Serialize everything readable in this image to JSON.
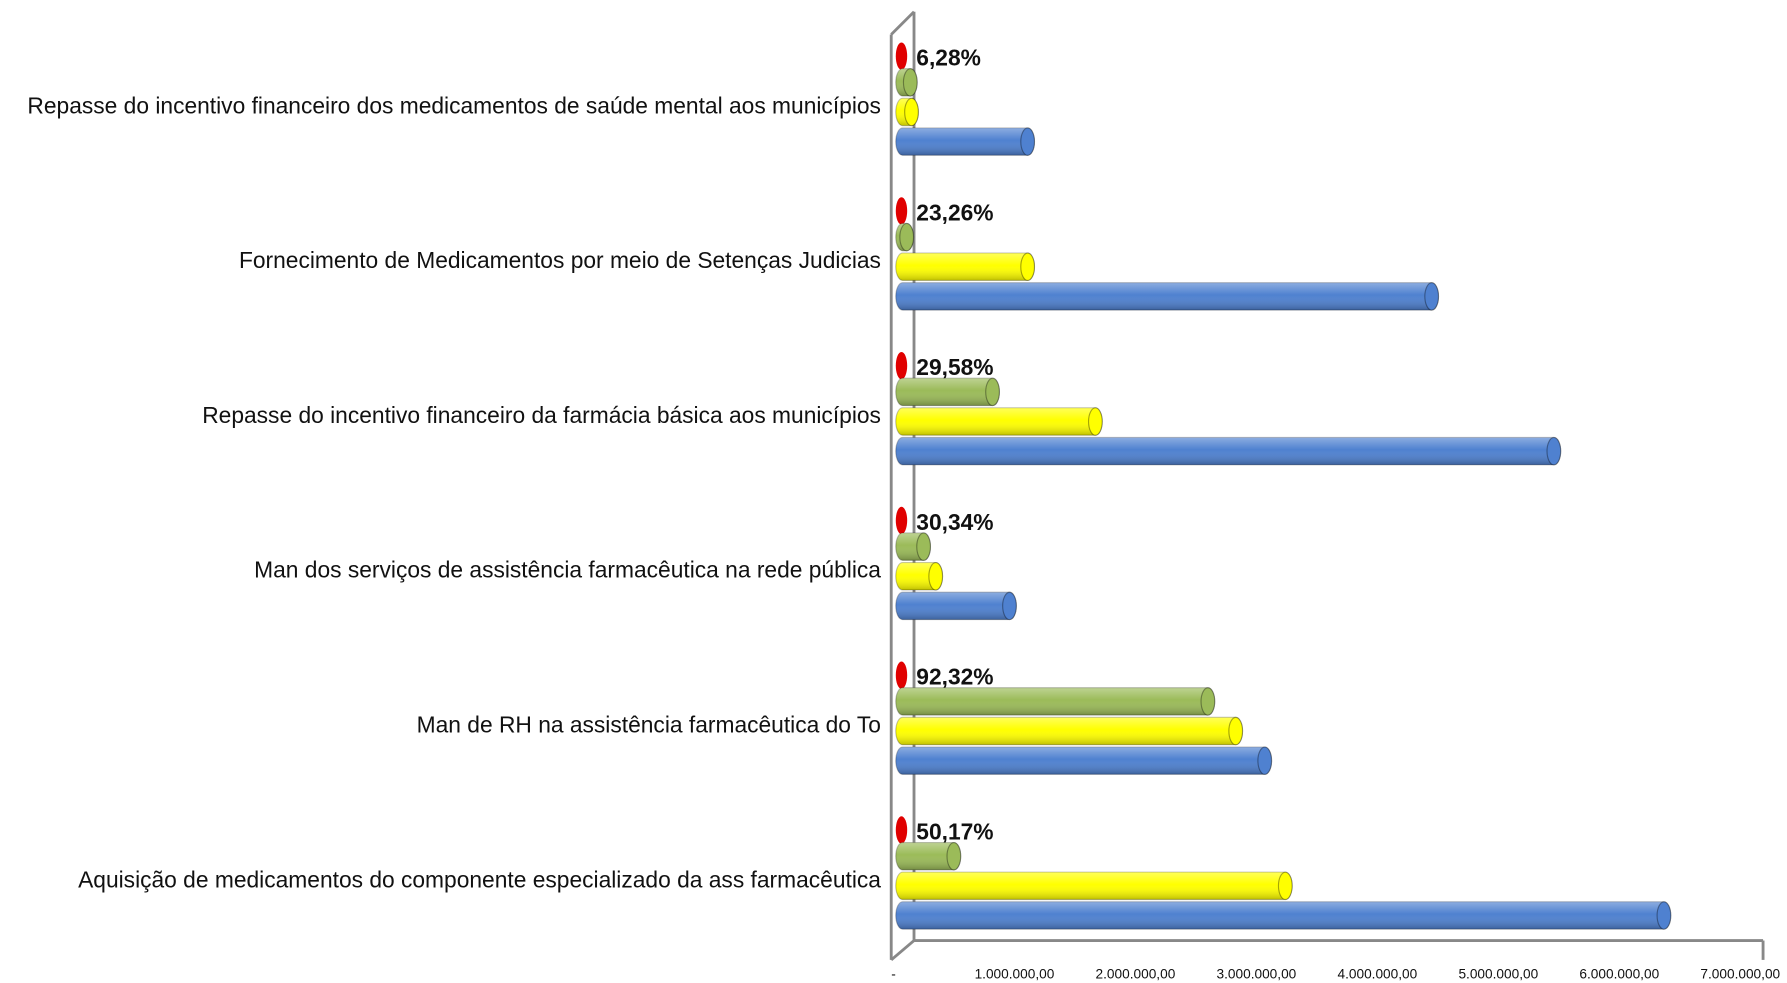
{
  "chart_data": {
    "type": "bar",
    "orientation": "horizontal",
    "categories": [
      "Repasse do incentivo financeiro dos medicamentos de saúde mental aos municípios",
      "Fornecimento de Medicamentos por meio de Setenças Judicias",
      "Repasse do incentivo financeiro da farmácia básica aos municípios",
      "Man dos serviços de  assistência farmacêutica na rede pública",
      "Man de RH na assistência farmacêutica do To",
      "Aquisição de medicamentos do componente especializado da ass farmacêutica"
    ],
    "series": [
      {
        "color": "#e00000",
        "values": [
          6.28,
          23.26,
          29.58,
          30.34,
          92.32,
          50.17
        ],
        "value_labels": [
          "6,28%",
          "23,26%",
          "29,58%",
          "30,34%",
          "92,32%",
          "50,17%"
        ]
      },
      {
        "color": "#9bbb59",
        "values": [
          120000,
          90000,
          800000,
          230000,
          2580000,
          480000
        ]
      },
      {
        "color": "#ffff00",
        "values": [
          130000,
          1090000,
          1650000,
          330000,
          2810000,
          3220000
        ]
      },
      {
        "color": "#4f81d0",
        "values": [
          1090000,
          4430000,
          5440000,
          940000,
          3050000,
          6350000
        ]
      }
    ],
    "xlim": [
      0,
      7000000
    ],
    "xticks": [
      {
        "value": 0,
        "label": "-"
      },
      {
        "value": 1000000,
        "label": "1.000.000,00"
      },
      {
        "value": 2000000,
        "label": "2.000.000,00"
      },
      {
        "value": 3000000,
        "label": "3.000.000,00"
      },
      {
        "value": 4000000,
        "label": "4.000.000,00"
      },
      {
        "value": 5000000,
        "label": "5.000.000,00"
      },
      {
        "value": 6000000,
        "label": "6.000.000,00"
      },
      {
        "value": 7000000,
        "label": "7.000.000,00"
      }
    ],
    "grid": false
  }
}
